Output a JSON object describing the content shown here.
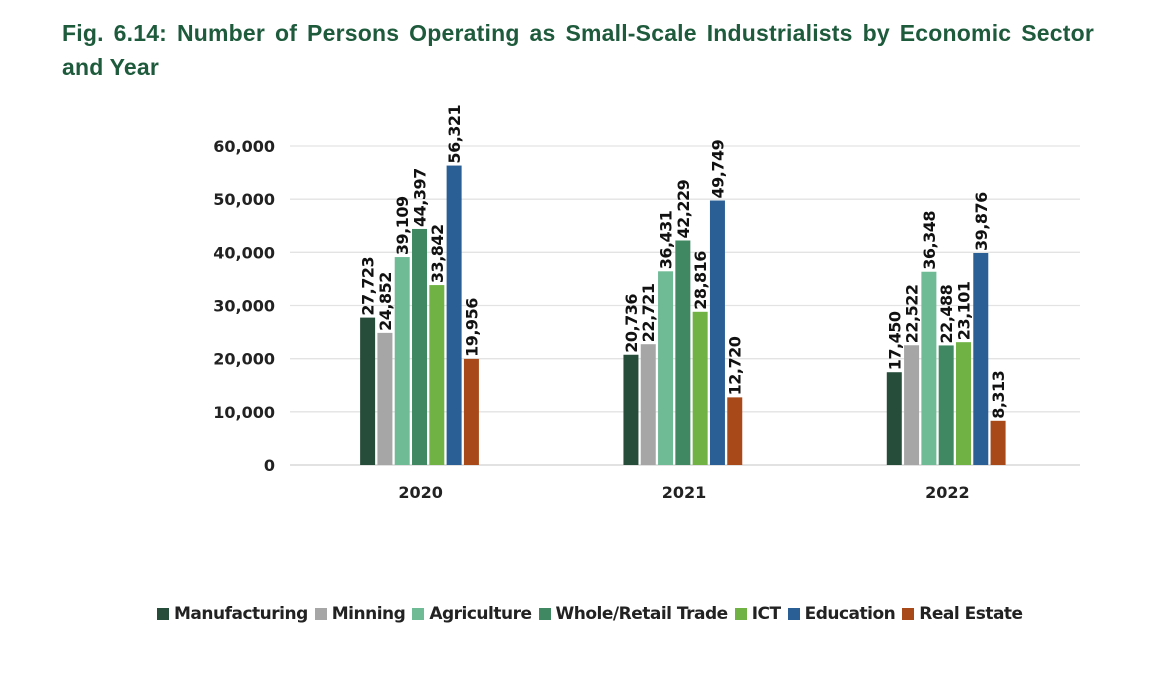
{
  "title": "Fig. 6.14: Number of Persons Operating as Small-Scale Industrialists by Economic Sector and Year",
  "chart_data": {
    "type": "bar",
    "title": "Fig. 6.14: Number of Persons Operating as Small-Scale Industrialists by Economic Sector and Year",
    "categories": [
      "2020",
      "2021",
      "2022"
    ],
    "series": [
      {
        "name": "Manufacturing",
        "color": "#264d3a",
        "values": [
          27723,
          20736,
          17450
        ]
      },
      {
        "name": "Minning",
        "color": "#a6a6a6",
        "values": [
          24852,
          22721,
          22522
        ]
      },
      {
        "name": "Agriculture",
        "color": "#6fbb96",
        "values": [
          39109,
          36431,
          36348
        ]
      },
      {
        "name": "Whole/Retail Trade",
        "color": "#3f8862",
        "values": [
          44397,
          42229,
          22488
        ]
      },
      {
        "name": "ICT",
        "color": "#71b244",
        "values": [
          33842,
          28816,
          23101
        ]
      },
      {
        "name": "Education",
        "color": "#2a5f95",
        "values": [
          56321,
          49749,
          39876
        ]
      },
      {
        "name": "Real Estate",
        "color": "#a8491a",
        "values": [
          19956,
          12720,
          8313
        ]
      }
    ],
    "value_labels": [
      [
        "27,723",
        "20,736",
        "17,450"
      ],
      [
        "24,852",
        "22,721",
        "22,522"
      ],
      [
        "39,109",
        "36,431",
        "36,348"
      ],
      [
        "44,397",
        "42,229",
        "22,488"
      ],
      [
        "33,842",
        "28,816",
        "23,101"
      ],
      [
        "56,321",
        "49,749",
        "39,876"
      ],
      [
        "19,956",
        "12,720",
        "8,313"
      ]
    ],
    "yticks": [
      "0",
      "10,000",
      "20,000",
      "30,000",
      "40,000",
      "50,000",
      "60,000"
    ],
    "ylim": [
      0,
      60000
    ],
    "xlabel": "",
    "ylabel": "",
    "grid": true,
    "legend": "bottom"
  }
}
